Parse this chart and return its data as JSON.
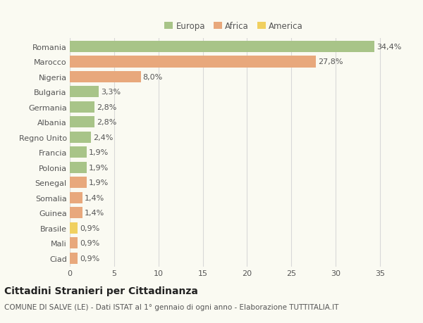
{
  "categories": [
    "Romania",
    "Marocco",
    "Nigeria",
    "Bulgaria",
    "Germania",
    "Albania",
    "Regno Unito",
    "Francia",
    "Polonia",
    "Senegal",
    "Somalia",
    "Guinea",
    "Brasile",
    "Mali",
    "Ciad"
  ],
  "values": [
    34.4,
    27.8,
    8.0,
    3.3,
    2.8,
    2.8,
    2.4,
    1.9,
    1.9,
    1.9,
    1.4,
    1.4,
    0.9,
    0.9,
    0.9
  ],
  "continents": [
    "Europa",
    "Africa",
    "Africa",
    "Europa",
    "Europa",
    "Europa",
    "Europa",
    "Europa",
    "Europa",
    "Africa",
    "Africa",
    "Africa",
    "America",
    "Africa",
    "Africa"
  ],
  "labels": [
    "34,4%",
    "27,8%",
    "8,0%",
    "3,3%",
    "2,8%",
    "2,8%",
    "2,4%",
    "1,9%",
    "1,9%",
    "1,9%",
    "1,4%",
    "1,4%",
    "0,9%",
    "0,9%",
    "0,9%"
  ],
  "colors": {
    "Europa": "#a8c488",
    "Africa": "#e8a87c",
    "America": "#f0d060"
  },
  "title": "Cittadini Stranieri per Cittadinanza",
  "subtitle": "COMUNE DI SALVE (LE) - Dati ISTAT al 1° gennaio di ogni anno - Elaborazione TUTTITALIA.IT",
  "xlim": [
    0,
    37
  ],
  "xticks": [
    0,
    5,
    10,
    15,
    20,
    25,
    30,
    35
  ],
  "background_color": "#fafaf2",
  "grid_color": "#d8d8d8",
  "bar_height": 0.75,
  "title_fontsize": 10,
  "subtitle_fontsize": 7.5,
  "tick_fontsize": 8,
  "label_fontsize": 8,
  "legend_fontsize": 8.5
}
